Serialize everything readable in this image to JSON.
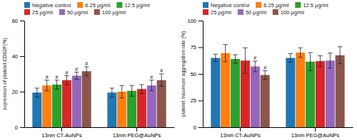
{
  "chart_data": [
    {
      "type": "bar",
      "ylabel": "expression of platelet CD62P(%)",
      "categories": [
        "13nm CT-AuNPs",
        "13nm PEG@AuNPs"
      ],
      "series": [
        {
          "name": "Negative control",
          "values": [
            19.5,
            19.5
          ],
          "errors": [
            2.5,
            2.5
          ]
        },
        {
          "name": "6.25 μg/ml",
          "values": [
            23.5,
            20.0
          ],
          "errors": [
            3.0,
            3.5
          ]
        },
        {
          "name": "12.5 μg/ml",
          "values": [
            24.0,
            20.5
          ],
          "errors": [
            2.5,
            3.0
          ]
        },
        {
          "name": "25 μg/ml",
          "values": [
            26.5,
            21.5
          ],
          "errors": [
            2.5,
            2.5
          ]
        },
        {
          "name": "50 μg/ml",
          "values": [
            29.0,
            23.5
          ],
          "errors": [
            2.0,
            3.0
          ]
        },
        {
          "name": "100 μg/ml",
          "values": [
            31.5,
            26.5
          ],
          "errors": [
            2.5,
            3.5
          ]
        }
      ],
      "annotations": [
        {
          "text": "#",
          "series": "6.25 μg/ml",
          "category": "13nm CT-AuNPs"
        },
        {
          "text": "#",
          "series": "12.5 μg/ml",
          "category": "13nm CT-AuNPs"
        },
        {
          "text": "#",
          "series": "25 μg/ml",
          "category": "13nm CT-AuNPs"
        },
        {
          "text": "#",
          "series": "50 μg/ml",
          "category": "13nm CT-AuNPs"
        },
        {
          "text": "#",
          "series": "100 μg/ml",
          "category": "13nm CT-AuNPs"
        },
        {
          "text": "#",
          "series": "50 μg/ml",
          "category": "13nm PEG@AuNPs"
        },
        {
          "text": "#",
          "series": "100 μg/ml",
          "category": "13nm PEG@AuNPs"
        }
      ],
      "ylim": [
        0,
        60
      ],
      "yticks": [
        0,
        20,
        40,
        60
      ],
      "legend": "top"
    },
    {
      "type": "bar",
      "ylabel": "platelet maximum aggregation rate (%)",
      "categories": [
        "13nm CT-AuNPs",
        "13nm PEG@AuNPs"
      ],
      "series": [
        {
          "name": "Negative control",
          "values": [
            65.0,
            65.0
          ],
          "errors": [
            3.5,
            4.0
          ]
        },
        {
          "name": "6.25 μg/ml",
          "values": [
            69.5,
            70.0
          ],
          "errors": [
            8.0,
            4.5
          ]
        },
        {
          "name": "12.5 μg/ml",
          "values": [
            64.0,
            61.5
          ],
          "errors": [
            4.0,
            8.5
          ]
        },
        {
          "name": "25 μg/ml",
          "values": [
            62.5,
            62.0
          ],
          "errors": [
            12.0,
            5.0
          ]
        },
        {
          "name": "50 μg/ml",
          "values": [
            57.0,
            62.5
          ],
          "errors": [
            5.0,
            7.0
          ]
        },
        {
          "name": "100 μg/ml",
          "values": [
            49.0,
            67.5
          ],
          "errors": [
            4.0,
            8.0
          ]
        }
      ],
      "annotations": [
        {
          "text": "#",
          "series": "50 μg/ml",
          "category": "13nm CT-AuNPs"
        },
        {
          "text": "#",
          "series": "100 μg/ml",
          "category": "13nm CT-AuNPs"
        }
      ],
      "ylim": [
        0,
        100
      ],
      "yticks": [
        0,
        25,
        50,
        75,
        100
      ],
      "legend": "top"
    }
  ]
}
